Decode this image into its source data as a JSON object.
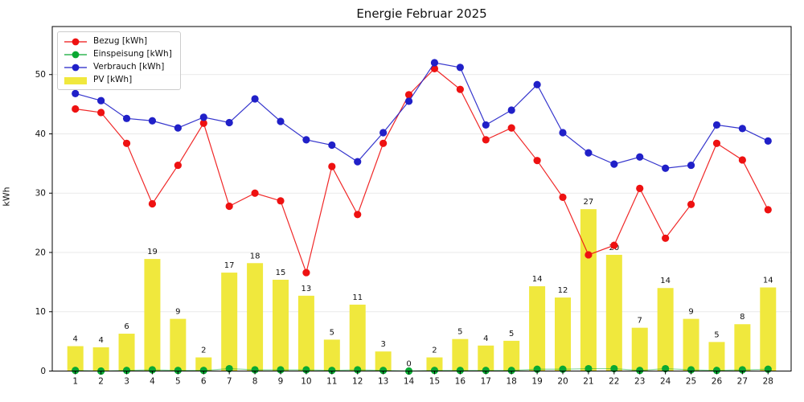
{
  "chart_data": {
    "type": "line+bar",
    "title": "Energie Februar 2025",
    "ylabel": "kWh",
    "x": [
      1,
      2,
      3,
      4,
      5,
      6,
      7,
      8,
      9,
      10,
      11,
      12,
      13,
      14,
      15,
      16,
      17,
      18,
      19,
      20,
      21,
      22,
      23,
      24,
      25,
      26,
      27,
      28
    ],
    "xtick_labels": [
      "1",
      "2",
      "3",
      "4",
      "5",
      "6",
      "7",
      "8",
      "9",
      "10",
      "11",
      "12",
      "13",
      "14",
      "15",
      "16",
      "17",
      "18",
      "19",
      "20",
      "21",
      "22",
      "23",
      "24",
      "25",
      "26",
      "27",
      "28"
    ],
    "yticks": [
      0,
      10,
      20,
      30,
      40,
      50
    ],
    "ylim": [
      0,
      58.1
    ],
    "xlim": [
      0.1,
      28.9
    ],
    "grid": "horizontal",
    "legend_position": "upper-left",
    "series": [
      {
        "name": "Bezug [kWh]",
        "type": "line",
        "color": "#ee1111",
        "values": [
          44.2,
          43.6,
          38.4,
          28.2,
          34.7,
          41.8,
          27.8,
          30.0,
          28.7,
          16.6,
          34.5,
          26.4,
          38.4,
          46.6,
          51.0,
          47.5,
          39.0,
          41.0,
          35.5,
          29.3,
          19.6,
          21.2,
          30.8,
          22.4,
          28.1,
          38.4,
          35.6,
          27.2
        ]
      },
      {
        "name": "Einspeisung [kWh]",
        "type": "line",
        "color": "#09a832",
        "values": [
          0.1,
          0.0,
          0.1,
          0.2,
          0.1,
          0.1,
          0.4,
          0.2,
          0.2,
          0.2,
          0.1,
          0.2,
          0.1,
          0.0,
          0.1,
          0.1,
          0.1,
          0.1,
          0.3,
          0.3,
          0.4,
          0.4,
          0.1,
          0.4,
          0.2,
          0.1,
          0.2,
          0.3
        ]
      },
      {
        "name": "Verbrauch [kWh]",
        "type": "line",
        "color": "#2020c8",
        "values": [
          46.8,
          45.6,
          42.6,
          42.2,
          41.0,
          42.8,
          41.9,
          45.9,
          42.1,
          39.0,
          38.1,
          35.3,
          40.2,
          45.5,
          52.0,
          51.2,
          41.5,
          44.0,
          48.3,
          40.2,
          36.8,
          34.9,
          36.1,
          34.2,
          34.7,
          41.5,
          40.9,
          38.8
        ]
      },
      {
        "name": "PV [kWh]",
        "type": "bar",
        "color": "#f0e83d",
        "values": [
          4.2,
          4.0,
          6.3,
          18.9,
          8.8,
          2.3,
          16.6,
          18.2,
          15.4,
          12.7,
          5.3,
          11.2,
          3.3,
          0.0,
          2.3,
          5.4,
          4.3,
          5.1,
          14.3,
          12.4,
          27.3,
          19.6,
          7.3,
          14.0,
          8.8,
          4.9,
          7.9,
          14.1
        ],
        "labels": [
          "4",
          "4",
          "6",
          "19",
          "9",
          "2",
          "17",
          "18",
          "15",
          "13",
          "5",
          "11",
          "3",
          "0",
          "2",
          "5",
          "4",
          "5",
          "14",
          "12",
          "27",
          "20",
          "7",
          "14",
          "9",
          "5",
          "8",
          "14"
        ]
      }
    ],
    "colors": {
      "grid": "#e9e9e9",
      "spine": "#000000",
      "tick_text": "#111111",
      "background": "#ffffff"
    }
  }
}
